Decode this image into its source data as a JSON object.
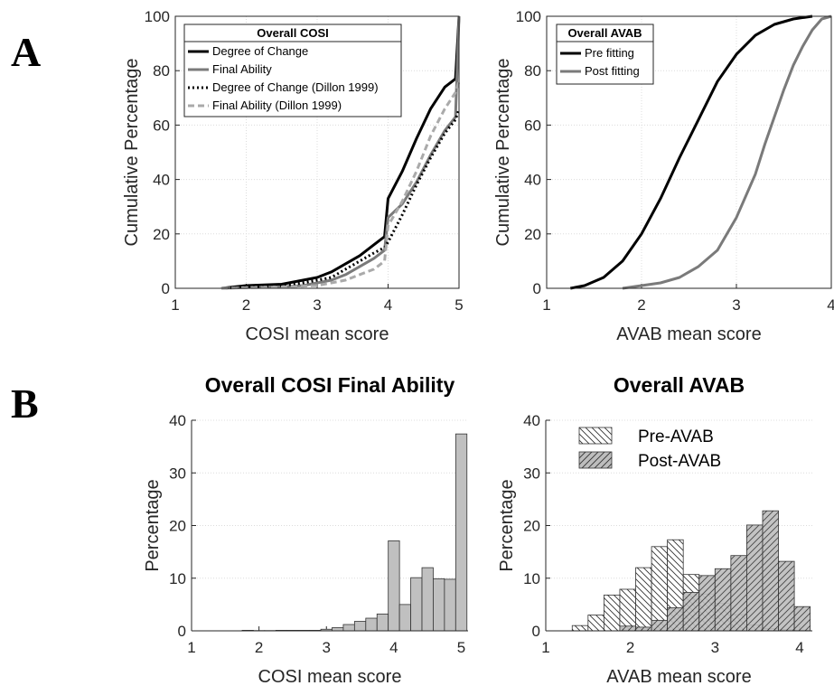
{
  "panel_labels": {
    "a": "A",
    "b": "B"
  },
  "chart_data": [
    {
      "id": "cosi_cdf",
      "type": "line",
      "title": "",
      "xlabel": "COSI mean score",
      "ylabel": "Cumulative Percentage",
      "xlim": [
        1,
        5
      ],
      "ylim": [
        0,
        100
      ],
      "xticks": [
        1,
        2,
        3,
        4,
        5
      ],
      "yticks": [
        0,
        20,
        40,
        60,
        80,
        100
      ],
      "grid": true,
      "legend_title": "Overall COSI",
      "legend_position": "top-left",
      "series": [
        {
          "name": "Degree of Change",
          "color": "#000000",
          "style": "solid",
          "x": [
            1.65,
            2.0,
            2.5,
            2.8,
            3.0,
            3.2,
            3.4,
            3.6,
            3.8,
            3.95,
            4.0,
            4.2,
            4.4,
            4.6,
            4.8,
            4.95,
            5.0
          ],
          "y": [
            0,
            1,
            1.5,
            3,
            4,
            6,
            9,
            12,
            16,
            19,
            33,
            43,
            55,
            66,
            74,
            77,
            100
          ]
        },
        {
          "name": "Final Ability",
          "color": "#7a7a7a",
          "style": "solid",
          "x": [
            1.65,
            2.0,
            2.5,
            2.8,
            3.0,
            3.2,
            3.4,
            3.6,
            3.8,
            3.95,
            4.0,
            4.2,
            4.4,
            4.6,
            4.8,
            4.95,
            5.0
          ],
          "y": [
            0,
            0.3,
            0.6,
            1,
            2,
            3,
            5,
            8,
            11,
            14,
            26,
            31,
            39,
            49,
            58,
            63,
            100
          ]
        },
        {
          "name": "Degree of Change (Dillon 1999)",
          "color": "#000000",
          "style": "dotted",
          "x": [
            1.65,
            2.0,
            2.5,
            2.8,
            3.0,
            3.2,
            3.4,
            3.6,
            3.8,
            3.95,
            4.0,
            4.2,
            4.4,
            4.6,
            4.8,
            4.95,
            5.0
          ],
          "y": [
            0,
            0.5,
            1,
            2,
            3,
            4,
            7,
            10,
            13,
            15,
            17,
            27,
            38,
            48,
            57,
            62,
            66
          ]
        },
        {
          "name": "Final Ability (Dillon 1999)",
          "color": "#aaaaaa",
          "style": "dashed",
          "x": [
            1.65,
            2.0,
            2.5,
            2.8,
            3.0,
            3.2,
            3.4,
            3.6,
            3.8,
            3.95,
            4.0,
            4.2,
            4.4,
            4.6,
            4.8,
            4.95,
            5.0
          ],
          "y": [
            0,
            0.2,
            0.5,
            0.8,
            1,
            2,
            3,
            5,
            7,
            10,
            23,
            32,
            43,
            56,
            66,
            72,
            76
          ]
        }
      ]
    },
    {
      "id": "avab_cdf",
      "type": "line",
      "title": "",
      "xlabel": "AVAB mean score",
      "ylabel": "Cumulative Percentage",
      "xlim": [
        1,
        4
      ],
      "ylim": [
        0,
        100
      ],
      "xticks": [
        1,
        2,
        3,
        4
      ],
      "yticks": [
        0,
        20,
        40,
        60,
        80,
        100
      ],
      "grid": true,
      "legend_title": "Overall AVAB",
      "legend_position": "top-left",
      "series": [
        {
          "name": "Pre fitting",
          "color": "#000000",
          "style": "solid",
          "x": [
            1.25,
            1.4,
            1.6,
            1.8,
            2.0,
            2.2,
            2.4,
            2.6,
            2.8,
            3.0,
            3.2,
            3.4,
            3.6,
            3.8
          ],
          "y": [
            0,
            1,
            4,
            10,
            20,
            33,
            48,
            62,
            76,
            86,
            93,
            97,
            99,
            100
          ]
        },
        {
          "name": "Post fitting",
          "color": "#7a7a7a",
          "style": "solid",
          "x": [
            1.8,
            2.0,
            2.2,
            2.4,
            2.6,
            2.8,
            3.0,
            3.2,
            3.3,
            3.4,
            3.5,
            3.6,
            3.7,
            3.8,
            3.9,
            4.0
          ],
          "y": [
            0,
            1,
            2,
            4,
            8,
            14,
            26,
            42,
            53,
            63,
            73,
            82,
            89,
            95,
            99,
            100
          ]
        }
      ]
    },
    {
      "id": "cosi_hist",
      "type": "bar",
      "title": "Overall COSI Final Ability",
      "xlabel": "COSI mean score",
      "ylabel": "Percentage",
      "xlim": [
        1,
        5.1
      ],
      "ylim": [
        0,
        40
      ],
      "xticks": [
        1,
        2,
        3,
        4,
        5
      ],
      "yticks": [
        0,
        10,
        20,
        30,
        40
      ],
      "grid": true,
      "bar_color": "#c0c0c0",
      "bin_width": 0.1667,
      "bin_starts": [
        1.75,
        1.9167,
        2.0833,
        2.25,
        2.4167,
        2.5833,
        2.75,
        2.9167,
        3.0833,
        3.25,
        3.4167,
        3.5833,
        3.75,
        3.9167,
        4.0833,
        4.25,
        4.4167,
        4.5833,
        4.75,
        4.9167
      ],
      "values": [
        0.1,
        0.05,
        0.05,
        0.1,
        0.1,
        0.1,
        0.1,
        0.3,
        0.6,
        1.2,
        1.8,
        2.4,
        3.2,
        17.1,
        5.0,
        10.1,
        12.0,
        9.9,
        9.8,
        37.4
      ]
    },
    {
      "id": "avab_hist",
      "type": "bar",
      "title": "Overall AVAB",
      "xlabel": "AVAB mean score",
      "ylabel": "Percentage",
      "xlim": [
        1,
        4.15
      ],
      "ylim": [
        0,
        40
      ],
      "xticks": [
        1,
        2,
        3,
        4
      ],
      "yticks": [
        0,
        10,
        20,
        30,
        40
      ],
      "grid": true,
      "legend_position": "top-left",
      "bin_width": 0.1875,
      "bin_starts": [
        1.3125,
        1.5,
        1.6875,
        1.875,
        2.0625,
        2.25,
        2.4375,
        2.625,
        2.8125,
        3.0,
        3.1875,
        3.375,
        3.5625,
        3.75,
        3.9375
      ],
      "series": [
        {
          "name": "Pre-AVAB",
          "fill": "#ffffff",
          "hatch": "back-diagonal",
          "values": [
            1.0,
            3.0,
            6.8,
            7.9,
            12.0,
            16.0,
            17.3,
            10.7,
            7.0,
            5.2,
            3.1,
            1.1,
            0.4,
            0.2,
            0.1
          ]
        },
        {
          "name": "Post-AVAB",
          "fill": "#bdbdbd",
          "hatch": "forward-diagonal",
          "values": [
            0.0,
            0.0,
            0.0,
            0.9,
            0.7,
            2.0,
            4.4,
            7.3,
            10.5,
            11.8,
            14.3,
            20.1,
            22.8,
            13.2,
            4.6
          ]
        }
      ]
    }
  ]
}
